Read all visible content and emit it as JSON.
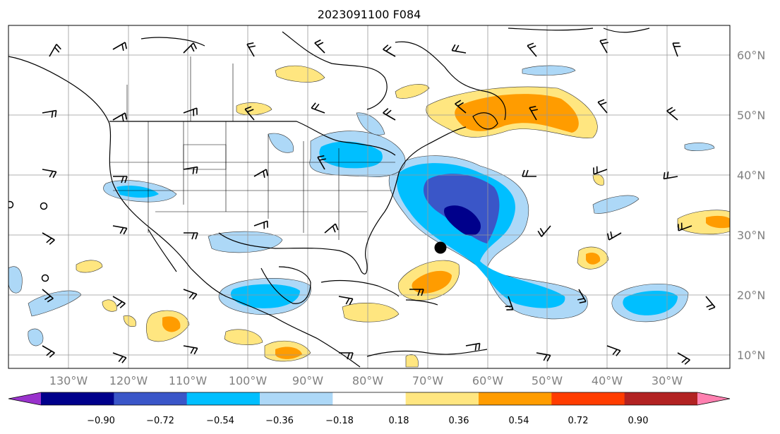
{
  "title": "2023091100 F084",
  "map": {
    "lat_labels": [
      "60°N",
      "50°N",
      "40°N",
      "30°N",
      "20°N",
      "10°N"
    ],
    "lon_labels": [
      "130°W",
      "120°W",
      "110°W",
      "100°W",
      "90°W",
      "80°W",
      "70°W",
      "60°W",
      "50°W",
      "40°W",
      "30°W"
    ],
    "grid": true
  },
  "colorbar": {
    "ticks": [
      "−0.90",
      "−0.72",
      "−0.54",
      "−0.36",
      "−0.18",
      "0.18",
      "0.36",
      "0.54",
      "0.72",
      "0.90"
    ],
    "colors": [
      "#9932cc",
      "#00008b",
      "#3a56c8",
      "#00bfff",
      "#add8f7",
      "#ffffff",
      "#ffe680",
      "#ff9c00",
      "#ff3c00",
      "#b22222",
      "#ff80b0"
    ],
    "extend": "both"
  },
  "storm_marker": {
    "lon": -69,
    "lat": 28
  }
}
